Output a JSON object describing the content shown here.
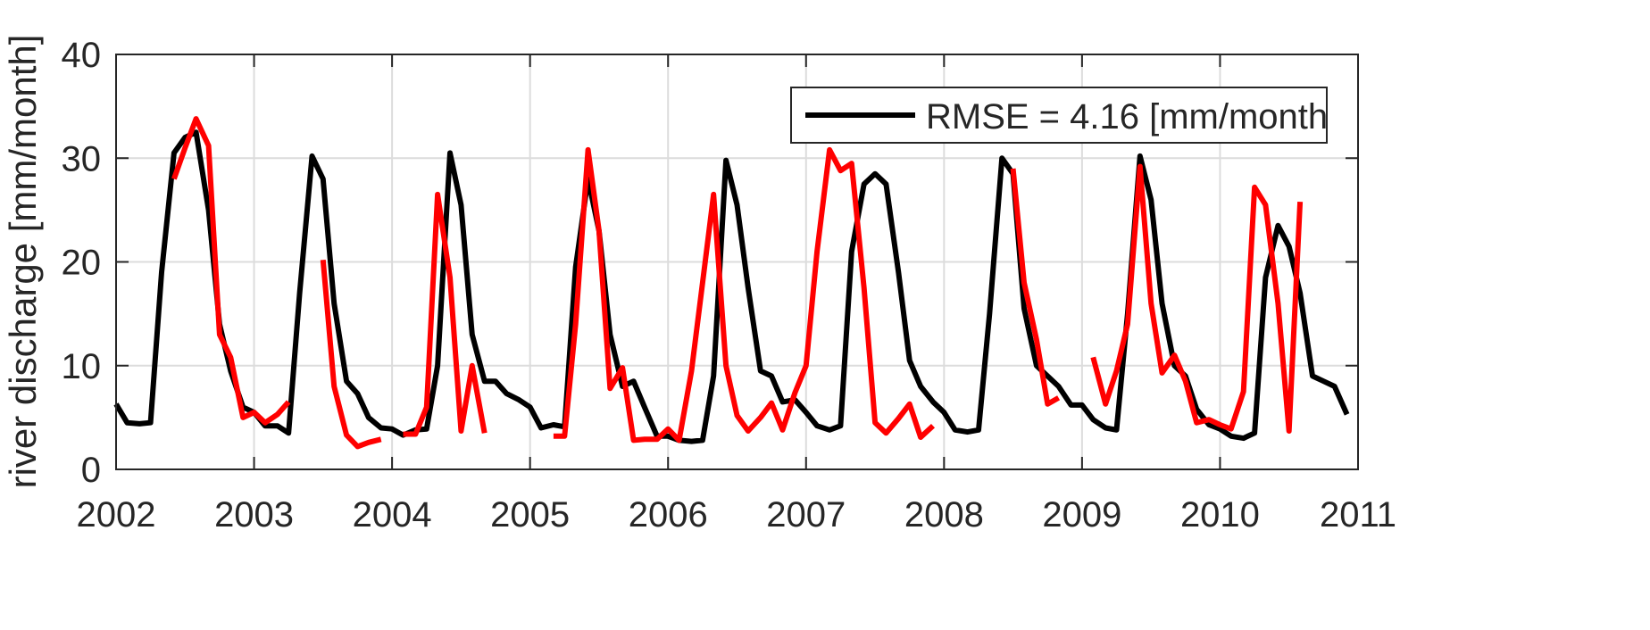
{
  "chart_data": {
    "type": "line",
    "title": "",
    "xlabel": "",
    "ylabel": "river discharge [mm/month]",
    "xlim": [
      2002,
      2011
    ],
    "ylim": [
      0,
      40
    ],
    "xticks": [
      "2002",
      "2003",
      "2004",
      "2005",
      "2006",
      "2007",
      "2008",
      "2009",
      "2010",
      "2011"
    ],
    "yticks": [
      "0",
      "10",
      "20",
      "30",
      "40"
    ],
    "grid": true,
    "legend": {
      "position": "top-right",
      "entries": [
        "RMSE = 4.16 [mm/month"
      ]
    },
    "series": [
      {
        "name": "RMSE = 4.16 [mm/month",
        "color": "#000000",
        "x": [
          2002.0,
          2002.08,
          2002.17,
          2002.25,
          2002.33,
          2002.42,
          2002.5,
          2002.58,
          2002.67,
          2002.75,
          2002.83,
          2002.92,
          2003.0,
          2003.08,
          2003.17,
          2003.25,
          2003.33,
          2003.42,
          2003.5,
          2003.58,
          2003.67,
          2003.75,
          2003.83,
          2003.92,
          2004.0,
          2004.08,
          2004.17,
          2004.25,
          2004.33,
          2004.42,
          2004.5,
          2004.58,
          2004.67,
          2004.75,
          2004.83,
          2004.92,
          2005.0,
          2005.08,
          2005.17,
          2005.25,
          2005.33,
          2005.42,
          2005.5,
          2005.58,
          2005.67,
          2005.75,
          2005.83,
          2005.92,
          2006.0,
          2006.08,
          2006.17,
          2006.25,
          2006.33,
          2006.42,
          2006.5,
          2006.58,
          2006.67,
          2006.75,
          2006.83,
          2006.92,
          2007.0,
          2007.08,
          2007.17,
          2007.25,
          2007.33,
          2007.42,
          2007.5,
          2007.58,
          2007.67,
          2007.75,
          2007.83,
          2007.92,
          2008.0,
          2008.08,
          2008.17,
          2008.25,
          2008.33,
          2008.42,
          2008.5,
          2008.58,
          2008.67,
          2008.75,
          2008.83,
          2008.92,
          2009.0,
          2009.08,
          2009.17,
          2009.25,
          2009.33,
          2009.42,
          2009.5,
          2009.58,
          2009.67,
          2009.75,
          2009.83,
          2009.92,
          2010.0,
          2010.08,
          2010.17,
          2010.25,
          2010.33,
          2010.42,
          2010.5,
          2010.58,
          2010.67,
          2010.75,
          2010.83,
          2010.92
        ],
        "values": [
          6.3,
          4.5,
          4.4,
          4.5,
          19.0,
          30.5,
          32.0,
          32.5,
          25.0,
          14.0,
          9.5,
          6.0,
          5.5,
          4.2,
          4.2,
          3.5,
          17.0,
          30.2,
          28.0,
          16.0,
          8.5,
          7.3,
          5.0,
          4.0,
          3.9,
          3.3,
          3.8,
          3.9,
          10.0,
          30.5,
          25.5,
          13.0,
          8.5,
          8.5,
          7.3,
          6.7,
          6.0,
          4.0,
          4.3,
          4.1,
          19.5,
          28.0,
          23.0,
          13.0,
          8.0,
          8.5,
          6.0,
          3.2,
          3.2,
          2.8,
          2.7,
          2.8,
          9.0,
          29.8,
          25.5,
          17.5,
          9.5,
          9.0,
          6.5,
          6.7,
          5.5,
          4.2,
          3.8,
          4.2,
          21.0,
          27.5,
          28.5,
          27.5,
          19.0,
          10.5,
          8.0,
          6.5,
          5.5,
          3.8,
          3.6,
          3.8,
          15.0,
          30.0,
          28.5,
          15.5,
          10.0,
          9.0,
          8.0,
          6.2,
          6.2,
          4.8,
          4.0,
          3.8,
          15.0,
          30.2,
          26.0,
          16.0,
          10.0,
          9.0,
          5.8,
          4.3,
          3.9,
          3.2,
          3.0,
          3.5,
          18.5,
          23.5,
          21.5,
          17.0,
          9.0,
          8.5,
          8.0,
          5.3
        ]
      },
      {
        "name": "",
        "color": "#ff0000",
        "segments": [
          {
            "x": [
              2002.42,
              2002.5,
              2002.58,
              2002.67,
              2002.75,
              2002.83,
              2002.92,
              2003.0,
              2003.08,
              2003.17,
              2003.25,
              2003.33
            ],
            "values": [
              28.0,
              31.0,
              33.8,
              31.2,
              13.0,
              10.8,
              5.0,
              5.5,
              4.5,
              5.3,
              6.5,
              null
            ]
          },
          {
            "x": [
              2003.5,
              2003.58,
              2003.67,
              2003.75,
              2003.83,
              2003.92,
              2004.0
            ],
            "values": [
              20.2,
              8.0,
              3.3,
              2.2,
              2.6,
              2.9,
              null
            ]
          },
          {
            "x": [
              2004.08,
              2004.17,
              2004.25,
              2004.33,
              2004.42,
              2004.5,
              2004.58,
              2004.67,
              2004.75,
              2004.83
            ],
            "values": [
              3.4,
              3.4,
              6.0,
              26.5,
              18.5,
              3.7,
              10.0,
              3.5,
              null,
              null
            ]
          },
          {
            "x": [
              2005.17,
              2005.25,
              2005.33,
              2005.42,
              2005.5,
              2005.58,
              2005.67,
              2005.75,
              2005.83,
              2005.92,
              2006.0,
              2006.08,
              2006.17,
              2006.25,
              2006.33,
              2006.42,
              2006.5,
              2006.58,
              2006.67,
              2006.75,
              2006.83,
              2006.92,
              2007.0,
              2007.08,
              2007.17,
              2007.25,
              2007.33,
              2007.42,
              2007.5,
              2007.58,
              2007.67,
              2007.75,
              2007.83,
              2007.92,
              2008.0,
              2008.08,
              2008.17,
              2008.25
            ],
            "values": [
              3.2,
              3.2,
              14.0,
              30.8,
              23.0,
              7.8,
              9.8,
              2.8,
              2.9,
              2.9,
              3.9,
              2.8,
              9.5,
              18.0,
              26.5,
              10.0,
              5.2,
              3.7,
              5.0,
              6.4,
              3.8,
              7.4,
              10.0,
              21.0,
              30.8,
              28.8,
              29.5,
              17.5,
              4.5,
              3.5,
              4.9,
              6.3,
              3.1,
              4.2,
              null,
              null,
              null,
              null
            ]
          },
          {
            "x": [
              2008.5,
              2008.58,
              2008.67,
              2008.75,
              2008.83
            ],
            "values": [
              29.0,
              18.0,
              12.5,
              6.3,
              6.9
            ]
          },
          {
            "x": [
              2009.08,
              2009.17,
              2009.25,
              2009.33,
              2009.42,
              2009.5,
              2009.58,
              2009.67,
              2009.75,
              2009.83,
              2009.92,
              2010.0,
              2010.08,
              2010.17,
              2010.25,
              2010.33,
              2010.42,
              2010.5,
              2010.58,
              2010.67,
              2010.75,
              2010.83
            ],
            "values": [
              10.8,
              6.3,
              9.5,
              14.0,
              29.2,
              16.0,
              9.3,
              11.0,
              8.5,
              4.5,
              4.8,
              4.3,
              3.9,
              7.5,
              27.2,
              25.5,
              16.0,
              3.7,
              25.8,
              null,
              null,
              null
            ]
          }
        ]
      }
    ]
  }
}
